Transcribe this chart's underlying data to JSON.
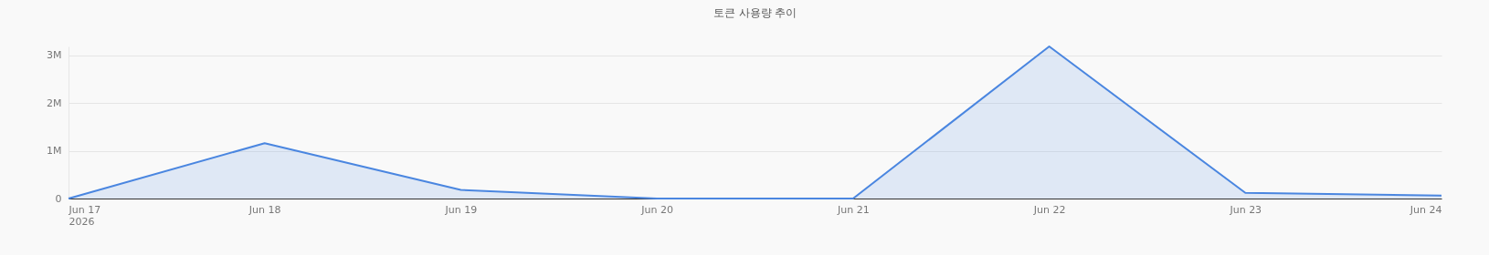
{
  "chart_data": {
    "type": "area",
    "title": "토큰 사용량 추이",
    "x": [
      "2026-06-17",
      "2026-06-18",
      "2026-06-19",
      "2026-06-20",
      "2026-06-21",
      "2026-06-22",
      "2026-06-23",
      "2026-06-24"
    ],
    "series": [
      {
        "color": "#4a86e0",
        "values": [
          0,
          1160000,
          180000,
          0,
          0,
          3190000,
          120000,
          60000
        ]
      }
    ],
    "xlim": [
      "2026-06-17",
      "2026-06-24"
    ],
    "xticks": [
      {
        "value": "2026-06-17",
        "label": "Jun 17\n2026"
      },
      {
        "value": "2026-06-18",
        "label": "Jun 18"
      },
      {
        "value": "2026-06-19",
        "label": "Jun 19"
      },
      {
        "value": "2026-06-20",
        "label": "Jun 20"
      },
      {
        "value": "2026-06-21",
        "label": "Jun 21"
      },
      {
        "value": "2026-06-22",
        "label": "Jun 22"
      },
      {
        "value": "2026-06-23",
        "label": "Jun 23"
      },
      {
        "value": "2026-06-24",
        "label": "Jun 24"
      }
    ],
    "yticks": [
      {
        "value": 0,
        "label": "0"
      },
      {
        "value": 1000000,
        "label": "1M"
      },
      {
        "value": 2000000,
        "label": "2M"
      },
      {
        "value": 3000000,
        "label": "3M"
      }
    ],
    "ylim": [
      0,
      3190000
    ],
    "grid": "y"
  }
}
